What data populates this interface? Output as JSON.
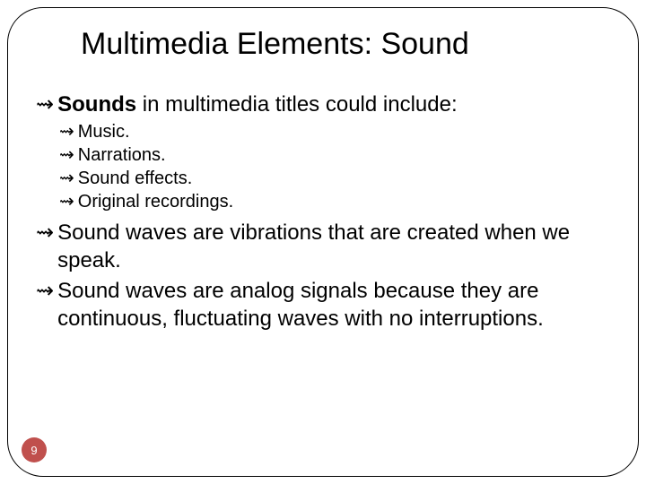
{
  "title": "Multimedia Elements: Sound",
  "bullets": [
    {
      "bold": "Sounds",
      "rest": " in multimedia titles could include:"
    },
    {
      "text": "Music."
    },
    {
      "text": "Narrations."
    },
    {
      "text": "Sound effects."
    },
    {
      "text": "Original recordings."
    },
    {
      "text": "Sound waves are vibrations that are created when we speak."
    },
    {
      "text": "Sound waves are analog signals because they are continuous, fluctuating waves with no interruptions."
    }
  ],
  "page_number": "9",
  "glyph": "⇝",
  "colors": {
    "page_badge_bg": "#c0504d",
    "page_badge_text": "#ffffff",
    "text": "#000000",
    "background": "#ffffff"
  }
}
